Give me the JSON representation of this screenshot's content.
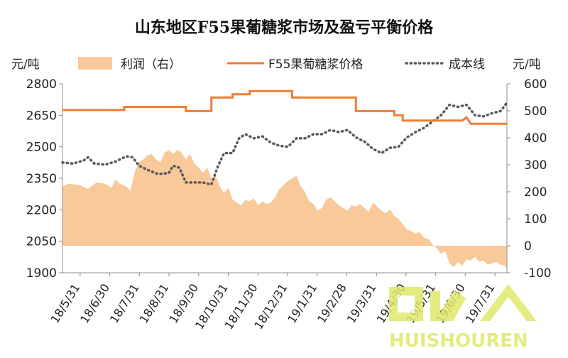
{
  "chart_data": {
    "type": "combo",
    "title": "山东地区F55果葡糖浆市场及盈亏平衡价格",
    "left_axis": {
      "unit": "元/吨",
      "ylim": [
        1900,
        2800
      ],
      "ticks": [
        "2800",
        "2650",
        "2500",
        "2350",
        "2200",
        "2050",
        "1900"
      ]
    },
    "right_axis": {
      "unit": "元/吨",
      "ylim": [
        -100,
        600
      ],
      "ticks": [
        "600",
        "500",
        "400",
        "300",
        "200",
        "100",
        "0",
        "-100"
      ]
    },
    "x_tick_labels": [
      "18/5/31",
      "18/6/30",
      "18/7/31",
      "18/8/31",
      "18/9/30",
      "18/10/31",
      "18/11/30",
      "18/12/31",
      "19/1/31",
      "19/2/28",
      "19/3/31",
      "19/4/30",
      "19/5/31",
      "19/6/30",
      "19/7/31"
    ],
    "legend": {
      "profit": "利润（右）",
      "price": "F55果葡糖浆价格",
      "cost": "成本线"
    },
    "colors": {
      "profit": "#f9c99a",
      "price": "#ee7e32",
      "cost": "#595959"
    },
    "series": [
      {
        "name": "利润（右）",
        "type": "area",
        "axis": "right",
        "points": [
          [
            0,
            220
          ],
          [
            0.3,
            230
          ],
          [
            0.8,
            225
          ],
          [
            1.2,
            210
          ],
          [
            1.6,
            235
          ],
          [
            2.0,
            230
          ],
          [
            2.3,
            215
          ],
          [
            2.5,
            245
          ],
          [
            2.7,
            230
          ],
          [
            3.0,
            220
          ],
          [
            3.2,
            205
          ],
          [
            3.4,
            275
          ],
          [
            3.6,
            310
          ],
          [
            3.8,
            320
          ],
          [
            4.0,
            335
          ],
          [
            4.2,
            340
          ],
          [
            4.4,
            320
          ],
          [
            4.6,
            310
          ],
          [
            4.8,
            345
          ],
          [
            5.0,
            355
          ],
          [
            5.2,
            340
          ],
          [
            5.4,
            355
          ],
          [
            5.6,
            345
          ],
          [
            5.8,
            320
          ],
          [
            6.0,
            340
          ],
          [
            6.2,
            305
          ],
          [
            6.4,
            290
          ],
          [
            6.6,
            270
          ],
          [
            6.8,
            290
          ],
          [
            7.0,
            250
          ],
          [
            7.2,
            260
          ],
          [
            7.4,
            220
          ],
          [
            7.6,
            195
          ],
          [
            7.8,
            215
          ],
          [
            8.0,
            170
          ],
          [
            8.2,
            160
          ],
          [
            8.4,
            150
          ],
          [
            8.6,
            170
          ],
          [
            8.8,
            165
          ],
          [
            9.0,
            175
          ],
          [
            9.2,
            150
          ],
          [
            9.4,
            165
          ],
          [
            9.6,
            155
          ],
          [
            9.8,
            160
          ],
          [
            10.0,
            180
          ],
          [
            10.2,
            210
          ],
          [
            10.4,
            225
          ],
          [
            10.6,
            240
          ],
          [
            10.8,
            250
          ],
          [
            11.0,
            260
          ],
          [
            11.2,
            220
          ],
          [
            11.4,
            200
          ],
          [
            11.6,
            165
          ],
          [
            11.8,
            155
          ],
          [
            12.0,
            130
          ],
          [
            12.2,
            140
          ],
          [
            12.4,
            170
          ],
          [
            12.6,
            180
          ],
          [
            12.8,
            165
          ],
          [
            13.0,
            150
          ],
          [
            13.2,
            140
          ],
          [
            13.4,
            130
          ],
          [
            13.6,
            150
          ],
          [
            13.8,
            145
          ],
          [
            14.0,
            155
          ],
          [
            14.2,
            140
          ],
          [
            14.4,
            125
          ],
          [
            14.6,
            160
          ],
          [
            14.8,
            145
          ],
          [
            15.0,
            130
          ],
          [
            15.2,
            120
          ],
          [
            15.4,
            135
          ],
          [
            15.6,
            110
          ],
          [
            15.8,
            100
          ],
          [
            16.0,
            80
          ],
          [
            16.2,
            60
          ],
          [
            16.4,
            55
          ],
          [
            16.6,
            45
          ],
          [
            16.8,
            50
          ],
          [
            17.0,
            30
          ],
          [
            17.2,
            25
          ],
          [
            17.4,
            5
          ],
          [
            17.6,
            -10
          ],
          [
            17.8,
            -30
          ],
          [
            18.0,
            -20
          ],
          [
            18.2,
            -65
          ],
          [
            18.4,
            -80
          ],
          [
            18.6,
            -60
          ],
          [
            18.8,
            -75
          ],
          [
            19.0,
            -50
          ],
          [
            19.2,
            -55
          ],
          [
            19.4,
            -40
          ],
          [
            19.6,
            -60
          ],
          [
            19.8,
            -55
          ],
          [
            20.0,
            -70
          ],
          [
            20.2,
            -65
          ],
          [
            20.4,
            -60
          ],
          [
            20.6,
            -70
          ],
          [
            20.8,
            -72
          ],
          [
            20.9,
            -90
          ]
        ]
      },
      {
        "name": "F55果葡糖浆价格",
        "type": "line",
        "axis": "left",
        "points": [
          [
            0,
            2675
          ],
          [
            2.9,
            2675
          ],
          [
            2.9,
            2690
          ],
          [
            5.8,
            2690
          ],
          [
            5.8,
            2670
          ],
          [
            7.0,
            2670
          ],
          [
            7.0,
            2735
          ],
          [
            8.0,
            2735
          ],
          [
            8.0,
            2750
          ],
          [
            8.8,
            2750
          ],
          [
            8.8,
            2765
          ],
          [
            10.8,
            2765
          ],
          [
            10.8,
            2735
          ],
          [
            13.8,
            2735
          ],
          [
            13.8,
            2670
          ],
          [
            15.6,
            2670
          ],
          [
            15.6,
            2650
          ],
          [
            16.0,
            2650
          ],
          [
            16.0,
            2625
          ],
          [
            18.8,
            2625
          ],
          [
            19.0,
            2640
          ],
          [
            19.2,
            2610
          ],
          [
            20.9,
            2610
          ]
        ]
      },
      {
        "name": "成本线",
        "type": "line",
        "axis": "left",
        "points": [
          [
            0,
            2425
          ],
          [
            0.5,
            2420
          ],
          [
            1.0,
            2435
          ],
          [
            1.2,
            2450
          ],
          [
            1.5,
            2420
          ],
          [
            2.0,
            2415
          ],
          [
            2.5,
            2430
          ],
          [
            3.0,
            2455
          ],
          [
            3.3,
            2450
          ],
          [
            3.6,
            2410
          ],
          [
            4.0,
            2390
          ],
          [
            4.5,
            2370
          ],
          [
            5.0,
            2375
          ],
          [
            5.2,
            2410
          ],
          [
            5.5,
            2400
          ],
          [
            5.8,
            2330
          ],
          [
            6.1,
            2330
          ],
          [
            6.6,
            2330
          ],
          [
            7.0,
            2320
          ],
          [
            7.3,
            2405
          ],
          [
            7.6,
            2470
          ],
          [
            8.0,
            2470
          ],
          [
            8.3,
            2540
          ],
          [
            8.6,
            2560
          ],
          [
            9.0,
            2540
          ],
          [
            9.4,
            2550
          ],
          [
            9.8,
            2520
          ],
          [
            10.2,
            2505
          ],
          [
            10.6,
            2500
          ],
          [
            11.0,
            2540
          ],
          [
            11.4,
            2540
          ],
          [
            11.8,
            2560
          ],
          [
            12.2,
            2560
          ],
          [
            12.6,
            2580
          ],
          [
            13.0,
            2570
          ],
          [
            13.4,
            2580
          ],
          [
            13.8,
            2545
          ],
          [
            14.2,
            2525
          ],
          [
            14.6,
            2490
          ],
          [
            15.0,
            2470
          ],
          [
            15.4,
            2495
          ],
          [
            15.8,
            2500
          ],
          [
            16.2,
            2545
          ],
          [
            16.6,
            2570
          ],
          [
            17.0,
            2590
          ],
          [
            17.4,
            2620
          ],
          [
            17.8,
            2650
          ],
          [
            18.2,
            2700
          ],
          [
            18.6,
            2690
          ],
          [
            19.0,
            2700
          ],
          [
            19.4,
            2650
          ],
          [
            19.8,
            2645
          ],
          [
            20.2,
            2660
          ],
          [
            20.6,
            2670
          ],
          [
            20.9,
            2710
          ]
        ]
      }
    ],
    "watermark": "HUISHOUREN"
  }
}
